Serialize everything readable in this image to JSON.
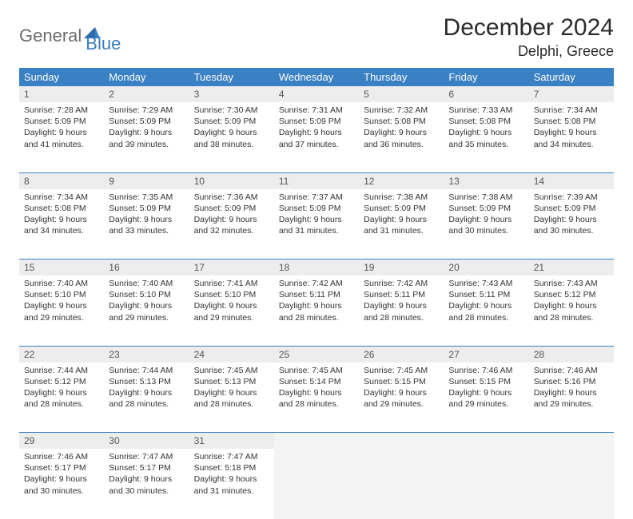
{
  "logo": {
    "text1": "General",
    "text2": "Blue"
  },
  "title": "December 2024",
  "location": "Delphi, Greece",
  "colors": {
    "header_bg": "#3a80c4",
    "header_text": "#ffffff",
    "daynum_bg": "#ededed",
    "divider": "#3a80c4",
    "text": "#333333",
    "logo_gray": "#6d6d6d",
    "logo_blue": "#3a7dbf"
  },
  "day_headers": [
    "Sunday",
    "Monday",
    "Tuesday",
    "Wednesday",
    "Thursday",
    "Friday",
    "Saturday"
  ],
  "weeks": [
    {
      "nums": [
        "1",
        "2",
        "3",
        "4",
        "5",
        "6",
        "7"
      ],
      "cells": [
        {
          "sunrise": "Sunrise: 7:28 AM",
          "sunset": "Sunset: 5:09 PM",
          "daylight": "Daylight: 9 hours and 41 minutes."
        },
        {
          "sunrise": "Sunrise: 7:29 AM",
          "sunset": "Sunset: 5:09 PM",
          "daylight": "Daylight: 9 hours and 39 minutes."
        },
        {
          "sunrise": "Sunrise: 7:30 AM",
          "sunset": "Sunset: 5:09 PM",
          "daylight": "Daylight: 9 hours and 38 minutes."
        },
        {
          "sunrise": "Sunrise: 7:31 AM",
          "sunset": "Sunset: 5:09 PM",
          "daylight": "Daylight: 9 hours and 37 minutes."
        },
        {
          "sunrise": "Sunrise: 7:32 AM",
          "sunset": "Sunset: 5:08 PM",
          "daylight": "Daylight: 9 hours and 36 minutes."
        },
        {
          "sunrise": "Sunrise: 7:33 AM",
          "sunset": "Sunset: 5:08 PM",
          "daylight": "Daylight: 9 hours and 35 minutes."
        },
        {
          "sunrise": "Sunrise: 7:34 AM",
          "sunset": "Sunset: 5:08 PM",
          "daylight": "Daylight: 9 hours and 34 minutes."
        }
      ]
    },
    {
      "nums": [
        "8",
        "9",
        "10",
        "11",
        "12",
        "13",
        "14"
      ],
      "cells": [
        {
          "sunrise": "Sunrise: 7:34 AM",
          "sunset": "Sunset: 5:08 PM",
          "daylight": "Daylight: 9 hours and 34 minutes."
        },
        {
          "sunrise": "Sunrise: 7:35 AM",
          "sunset": "Sunset: 5:09 PM",
          "daylight": "Daylight: 9 hours and 33 minutes."
        },
        {
          "sunrise": "Sunrise: 7:36 AM",
          "sunset": "Sunset: 5:09 PM",
          "daylight": "Daylight: 9 hours and 32 minutes."
        },
        {
          "sunrise": "Sunrise: 7:37 AM",
          "sunset": "Sunset: 5:09 PM",
          "daylight": "Daylight: 9 hours and 31 minutes."
        },
        {
          "sunrise": "Sunrise: 7:38 AM",
          "sunset": "Sunset: 5:09 PM",
          "daylight": "Daylight: 9 hours and 31 minutes."
        },
        {
          "sunrise": "Sunrise: 7:38 AM",
          "sunset": "Sunset: 5:09 PM",
          "daylight": "Daylight: 9 hours and 30 minutes."
        },
        {
          "sunrise": "Sunrise: 7:39 AM",
          "sunset": "Sunset: 5:09 PM",
          "daylight": "Daylight: 9 hours and 30 minutes."
        }
      ]
    },
    {
      "nums": [
        "15",
        "16",
        "17",
        "18",
        "19",
        "20",
        "21"
      ],
      "cells": [
        {
          "sunrise": "Sunrise: 7:40 AM",
          "sunset": "Sunset: 5:10 PM",
          "daylight": "Daylight: 9 hours and 29 minutes."
        },
        {
          "sunrise": "Sunrise: 7:40 AM",
          "sunset": "Sunset: 5:10 PM",
          "daylight": "Daylight: 9 hours and 29 minutes."
        },
        {
          "sunrise": "Sunrise: 7:41 AM",
          "sunset": "Sunset: 5:10 PM",
          "daylight": "Daylight: 9 hours and 29 minutes."
        },
        {
          "sunrise": "Sunrise: 7:42 AM",
          "sunset": "Sunset: 5:11 PM",
          "daylight": "Daylight: 9 hours and 28 minutes."
        },
        {
          "sunrise": "Sunrise: 7:42 AM",
          "sunset": "Sunset: 5:11 PM",
          "daylight": "Daylight: 9 hours and 28 minutes."
        },
        {
          "sunrise": "Sunrise: 7:43 AM",
          "sunset": "Sunset: 5:11 PM",
          "daylight": "Daylight: 9 hours and 28 minutes."
        },
        {
          "sunrise": "Sunrise: 7:43 AM",
          "sunset": "Sunset: 5:12 PM",
          "daylight": "Daylight: 9 hours and 28 minutes."
        }
      ]
    },
    {
      "nums": [
        "22",
        "23",
        "24",
        "25",
        "26",
        "27",
        "28"
      ],
      "cells": [
        {
          "sunrise": "Sunrise: 7:44 AM",
          "sunset": "Sunset: 5:12 PM",
          "daylight": "Daylight: 9 hours and 28 minutes."
        },
        {
          "sunrise": "Sunrise: 7:44 AM",
          "sunset": "Sunset: 5:13 PM",
          "daylight": "Daylight: 9 hours and 28 minutes."
        },
        {
          "sunrise": "Sunrise: 7:45 AM",
          "sunset": "Sunset: 5:13 PM",
          "daylight": "Daylight: 9 hours and 28 minutes."
        },
        {
          "sunrise": "Sunrise: 7:45 AM",
          "sunset": "Sunset: 5:14 PM",
          "daylight": "Daylight: 9 hours and 28 minutes."
        },
        {
          "sunrise": "Sunrise: 7:45 AM",
          "sunset": "Sunset: 5:15 PM",
          "daylight": "Daylight: 9 hours and 29 minutes."
        },
        {
          "sunrise": "Sunrise: 7:46 AM",
          "sunset": "Sunset: 5:15 PM",
          "daylight": "Daylight: 9 hours and 29 minutes."
        },
        {
          "sunrise": "Sunrise: 7:46 AM",
          "sunset": "Sunset: 5:16 PM",
          "daylight": "Daylight: 9 hours and 29 minutes."
        }
      ]
    },
    {
      "nums": [
        "29",
        "30",
        "31",
        "",
        "",
        "",
        ""
      ],
      "cells": [
        {
          "sunrise": "Sunrise: 7:46 AM",
          "sunset": "Sunset: 5:17 PM",
          "daylight": "Daylight: 9 hours and 30 minutes."
        },
        {
          "sunrise": "Sunrise: 7:47 AM",
          "sunset": "Sunset: 5:17 PM",
          "daylight": "Daylight: 9 hours and 30 minutes."
        },
        {
          "sunrise": "Sunrise: 7:47 AM",
          "sunset": "Sunset: 5:18 PM",
          "daylight": "Daylight: 9 hours and 31 minutes."
        },
        null,
        null,
        null,
        null
      ]
    }
  ]
}
